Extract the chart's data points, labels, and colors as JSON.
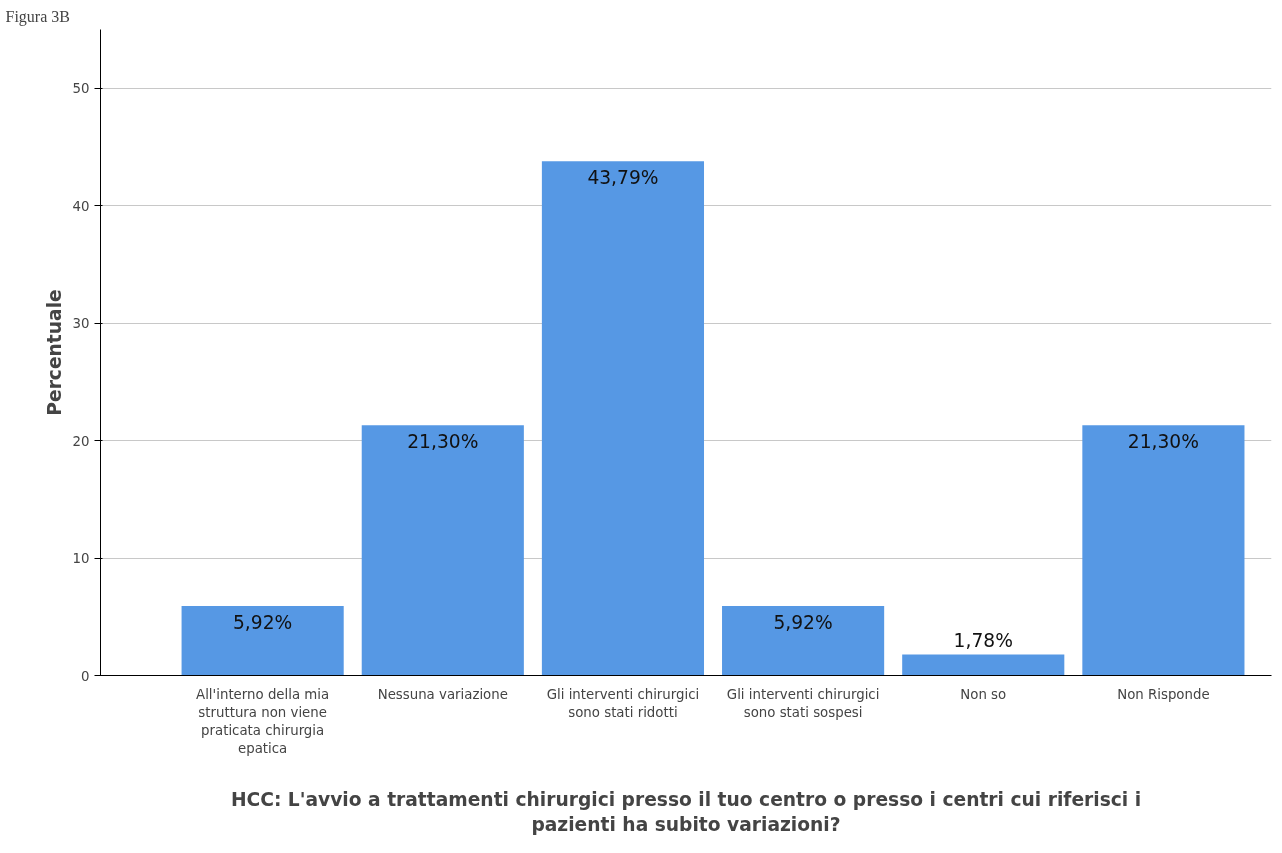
{
  "chart_data": {
    "type": "bar",
    "annotations": [
      "Figura 3B"
    ],
    "xlabel": "HCC: L'avvio a trattamenti chirurgici presso il tuo centro o presso i centri cui riferisci i pazienti ha subito variazioni?",
    "ylabel": "Percentuale",
    "categories": [
      "All'interno della mia struttura non viene praticata chirurgia epatica",
      "Nessuna variazione",
      "Gli interventi chirurgici sono stati ridotti",
      "Gli interventi chirurgici sono stati sospesi",
      "Non so",
      "Non Risponde"
    ],
    "values": [
      5.92,
      21.3,
      43.79,
      5.92,
      1.78,
      21.3
    ],
    "value_labels": [
      "5,92%",
      "21,30%",
      "43,79%",
      "5,92%",
      "1,78%",
      "21,30%"
    ],
    "color": "#5698e4",
    "ylim": [
      0,
      55
    ],
    "yticks": [
      0,
      10,
      20,
      30,
      40,
      50
    ],
    "grid": "y"
  }
}
